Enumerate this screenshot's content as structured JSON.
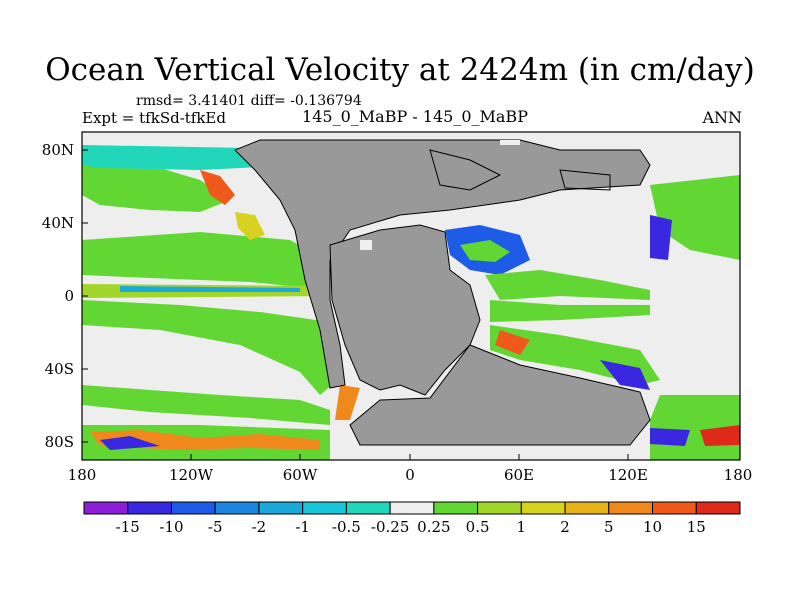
{
  "title": "Ocean Vertical Velocity at 2424m (in cm/day)",
  "stats": "rmsd= 3.41401 diff= -0.136794",
  "experiment": "Expt = tfkSd-tfkEd",
  "center_label": "145_0_MaBP - 145_0_MaBP",
  "season": "ANN",
  "lat_ticks": [
    "80N",
    "40N",
    "0",
    "40S",
    "80S"
  ],
  "lon_ticks": [
    "180",
    "120W",
    "60W",
    "0",
    "60E",
    "120E",
    "180"
  ],
  "colorbar": {
    "labels": [
      "-15",
      "-10",
      "-5",
      "-2",
      "-1",
      "-0.5",
      "-0.25",
      "0.25",
      "0.5",
      "1",
      "2",
      "5",
      "10",
      "15"
    ],
    "colors": [
      "#8a1fd6",
      "#3a28e0",
      "#1e5be6",
      "#1b86dc",
      "#1aa9d8",
      "#19c6d8",
      "#22d6b9",
      "#eeeeee",
      "#62d633",
      "#a3d62a",
      "#d6d21f",
      "#e6b21a",
      "#f0891c",
      "#ef5a1c",
      "#dd2a1a"
    ]
  },
  "colors": {
    "land": "#999999",
    "neutral": "#eeeeee"
  }
}
